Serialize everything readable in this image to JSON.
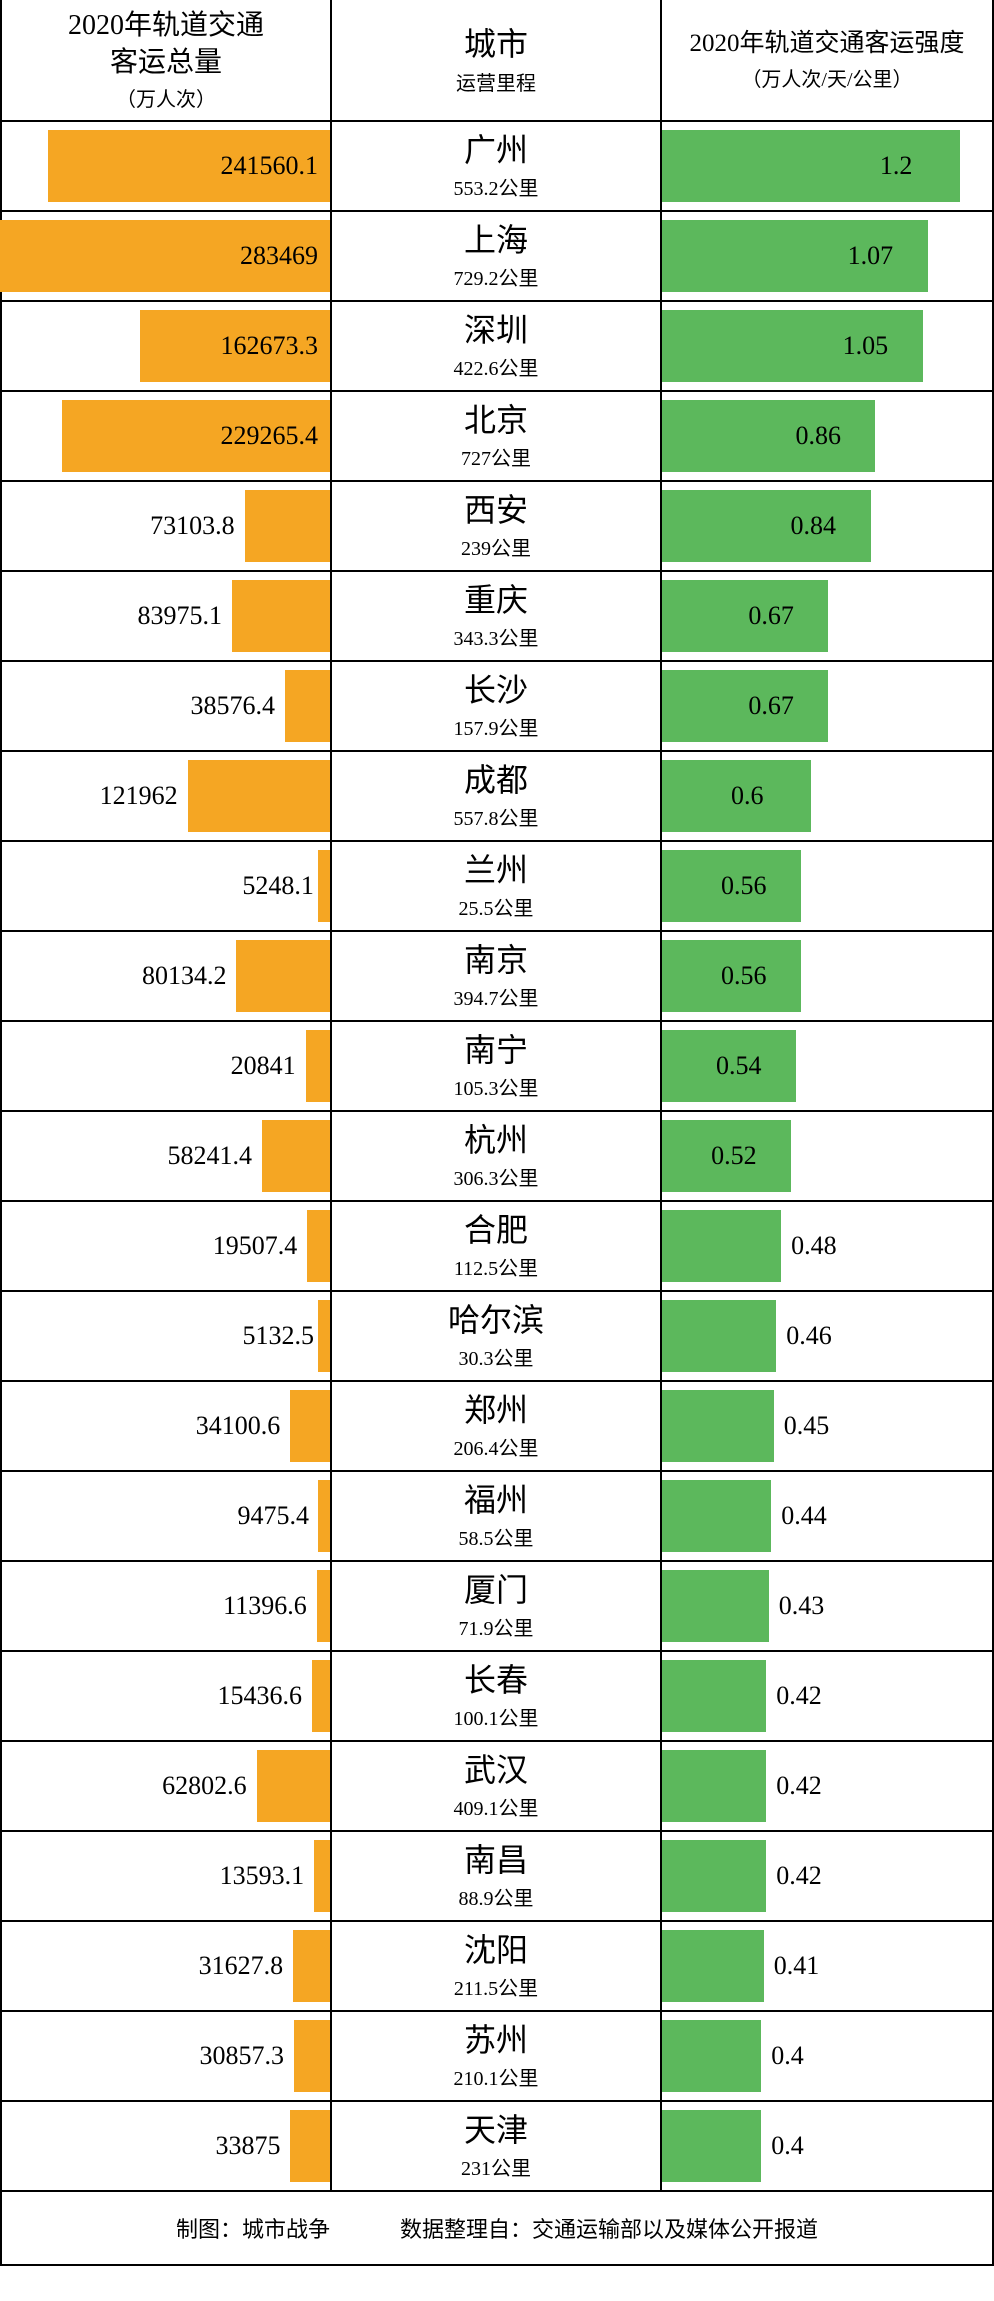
{
  "headers": {
    "left_title": "2020年轨道交通\n客运总量",
    "left_sub": "（万人次）",
    "center_title": "城市",
    "center_sub": "运营里程",
    "right_title": "2020年轨道交通客运强度",
    "right_sub": "（万人次/天/公里）"
  },
  "colors": {
    "bar_left": "#f5a623",
    "bar_right": "#5cb85c",
    "border": "#000000",
    "text": "#000000",
    "background": "#ffffff"
  },
  "scale": {
    "left_max": 283469,
    "right_max": 1.2,
    "left_col_width": 331,
    "right_col_width": 331
  },
  "rows": [
    {
      "city": "广州",
      "km": "553.2公里",
      "left_val": 241560.1,
      "left_label": "241560.1",
      "right_val": 1.2,
      "right_label": "1.2"
    },
    {
      "city": "上海",
      "km": "729.2公里",
      "left_val": 283469,
      "left_label": "283469",
      "right_val": 1.07,
      "right_label": "1.07"
    },
    {
      "city": "深圳",
      "km": "422.6公里",
      "left_val": 162673.3,
      "left_label": "162673.3",
      "right_val": 1.05,
      "right_label": "1.05"
    },
    {
      "city": "北京",
      "km": "727公里",
      "left_val": 229265.4,
      "left_label": "229265.4",
      "right_val": 0.86,
      "right_label": "0.86"
    },
    {
      "city": "西安",
      "km": "239公里",
      "left_val": 73103.8,
      "left_label": "73103.8",
      "right_val": 0.84,
      "right_label": "0.84"
    },
    {
      "city": "重庆",
      "km": "343.3公里",
      "left_val": 83975.1,
      "left_label": "83975.1",
      "right_val": 0.67,
      "right_label": "0.67"
    },
    {
      "city": "长沙",
      "km": "157.9公里",
      "left_val": 38576.4,
      "left_label": "38576.4",
      "right_val": 0.67,
      "right_label": "0.67"
    },
    {
      "city": "成都",
      "km": "557.8公里",
      "left_val": 121962,
      "left_label": "121962",
      "right_val": 0.6,
      "right_label": "0.6"
    },
    {
      "city": "兰州",
      "km": "25.5公里",
      "left_val": 5248.1,
      "left_label": "5248.1",
      "right_val": 0.56,
      "right_label": "0.56"
    },
    {
      "city": "南京",
      "km": "394.7公里",
      "left_val": 80134.2,
      "left_label": "80134.2",
      "right_val": 0.56,
      "right_label": "0.56"
    },
    {
      "city": "南宁",
      "km": "105.3公里",
      "left_val": 20841,
      "left_label": "20841",
      "right_val": 0.54,
      "right_label": "0.54"
    },
    {
      "city": "杭州",
      "km": "306.3公里",
      "left_val": 58241.4,
      "left_label": "58241.4",
      "right_val": 0.52,
      "right_label": "0.52"
    },
    {
      "city": "合肥",
      "km": "112.5公里",
      "left_val": 19507.4,
      "left_label": "19507.4",
      "right_val": 0.48,
      "right_label": "0.48"
    },
    {
      "city": "哈尔滨",
      "km": "30.3公里",
      "left_val": 5132.5,
      "left_label": "5132.5",
      "right_val": 0.46,
      "right_label": "0.46"
    },
    {
      "city": "郑州",
      "km": "206.4公里",
      "left_val": 34100.6,
      "left_label": "34100.6",
      "right_val": 0.45,
      "right_label": "0.45"
    },
    {
      "city": "福州",
      "km": "58.5公里",
      "left_val": 9475.4,
      "left_label": "9475.4",
      "right_val": 0.44,
      "right_label": "0.44"
    },
    {
      "city": "厦门",
      "km": "71.9公里",
      "left_val": 11396.6,
      "left_label": "11396.6",
      "right_val": 0.43,
      "right_label": "0.43"
    },
    {
      "city": "长春",
      "km": "100.1公里",
      "left_val": 15436.6,
      "left_label": "15436.6",
      "right_val": 0.42,
      "right_label": "0.42"
    },
    {
      "city": "武汉",
      "km": "409.1公里",
      "left_val": 62802.6,
      "left_label": "62802.6",
      "right_val": 0.42,
      "right_label": "0.42"
    },
    {
      "city": "南昌",
      "km": "88.9公里",
      "left_val": 13593.1,
      "left_label": "13593.1",
      "right_val": 0.42,
      "right_label": "0.42"
    },
    {
      "city": "沈阳",
      "km": "211.5公里",
      "left_val": 31627.8,
      "left_label": "31627.8",
      "right_val": 0.41,
      "right_label": "0.41"
    },
    {
      "city": "苏州",
      "km": "210.1公里",
      "left_val": 30857.3,
      "left_label": "30857.3",
      "right_val": 0.4,
      "right_label": "0.4"
    },
    {
      "city": "天津",
      "km": "231公里",
      "left_val": 33875,
      "left_label": "33875",
      "right_val": 0.4,
      "right_label": "0.4"
    }
  ],
  "footer": {
    "left": "制图：城市战争",
    "right": "数据整理自：交通运输部以及媒体公开报道"
  }
}
